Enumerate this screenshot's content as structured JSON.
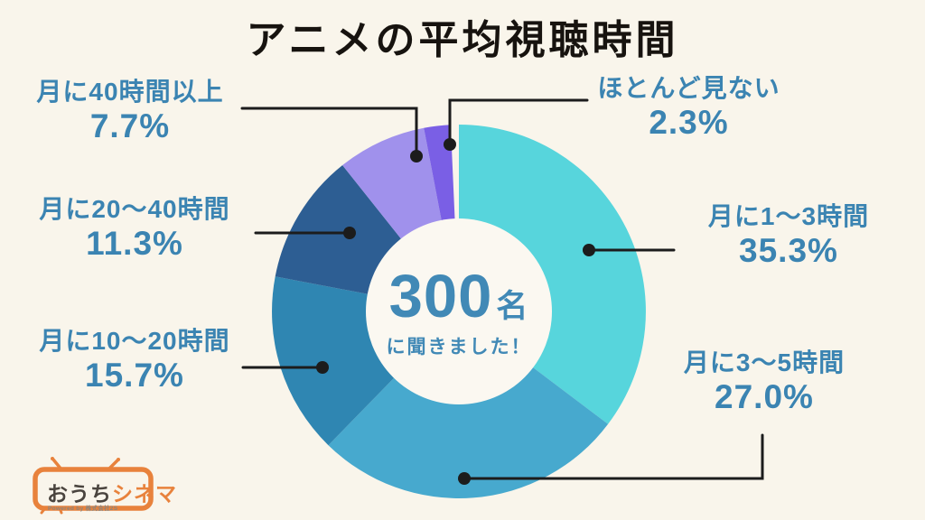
{
  "page": {
    "background_color": "#f9f5eb",
    "title_color": "#17130f",
    "label_color": "#3b84b2"
  },
  "chart_data": {
    "type": "pie",
    "variant": "donut",
    "title": "アニメの平均視聴時間",
    "direction": "clockwise",
    "start_angle_deg": 0,
    "legend_position": "callouts-around-chart",
    "leader_line_color": "#1c1c1c",
    "center_label": {
      "value": "300",
      "unit": "名",
      "caption": "に聞きました！"
    },
    "slices": [
      {
        "label": "月に1〜3時間",
        "value": 35.3,
        "pct_label": "35.3%",
        "color": "#57d5dc"
      },
      {
        "label": "月に3〜5時間",
        "value": 27.0,
        "pct_label": "27.0%",
        "color": "#47a9ce"
      },
      {
        "label": "月に10〜20時間",
        "value": 15.7,
        "pct_label": "15.7%",
        "color": "#2f86b2"
      },
      {
        "label": "月に20〜40時間",
        "value": 11.3,
        "pct_label": "11.3%",
        "color": "#2d5e93"
      },
      {
        "label": "月に40時間以上",
        "value": 7.7,
        "pct_label": "7.7%",
        "color": "#a091ec"
      },
      {
        "label": "ほとんど見ない",
        "value": 2.3,
        "pct_label": "2.3%",
        "color": "#7a5fe5"
      }
    ]
  },
  "logo": {
    "brand_main": "おうち",
    "brand_accent": "シネマ",
    "powered_by": "Powered by 株式会社2S",
    "accent_color": "#e8823c",
    "text_color": "#4a443e"
  }
}
